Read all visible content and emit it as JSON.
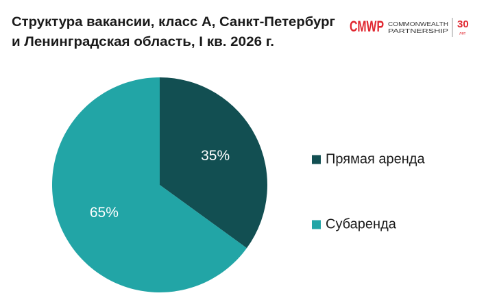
{
  "chart_data": {
    "type": "pie",
    "title": [
      "Структура вакансии, класс А, Санкт-Петербург",
      "и Ленинградская область, I кв. 2026 г."
    ],
    "categories": [
      "Прямая аренда",
      "Субаренда"
    ],
    "values": [
      35,
      65
    ],
    "value_labels": [
      "35%",
      "65%"
    ],
    "colors": [
      "#124f52",
      "#22a5a6"
    ],
    "legend": "right"
  },
  "logo": {
    "mark": "CMWP",
    "line1": "COMMONWEALTH",
    "line2": "PARTNERSHIP",
    "years": "30",
    "years_unit": "лет"
  }
}
